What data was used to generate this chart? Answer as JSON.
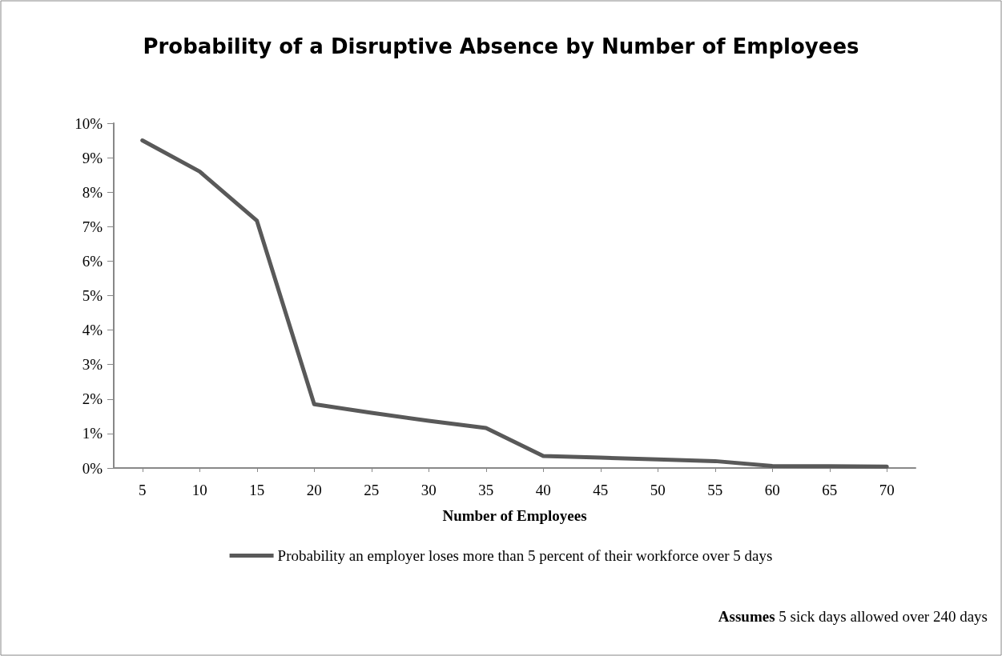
{
  "chart_data": {
    "type": "line",
    "title": "Probability of a Disruptive Absence by Number of Employees",
    "xlabel": "Number of Employees",
    "categories": [
      "5",
      "10",
      "15",
      "20",
      "25",
      "30",
      "35",
      "40",
      "45",
      "50",
      "55",
      "60",
      "65",
      "70"
    ],
    "series": [
      {
        "name": "Probability an employer loses more than 5 percent of their workforce over 5 days",
        "color": "#595959",
        "values": [
          9.5,
          8.6,
          7.17,
          1.85,
          1.6,
          1.37,
          1.16,
          0.35,
          0.3,
          0.25,
          0.2,
          0.06,
          0.05,
          0.04
        ]
      }
    ],
    "ylim": [
      0,
      10
    ],
    "yticks": [
      {
        "value": 0,
        "label": "0%"
      },
      {
        "value": 1,
        "label": "1%"
      },
      {
        "value": 2,
        "label": "2%"
      },
      {
        "value": 3,
        "label": "3%"
      },
      {
        "value": 4,
        "label": "4%"
      },
      {
        "value": 5,
        "label": "5%"
      },
      {
        "value": 6,
        "label": "6%"
      },
      {
        "value": 7,
        "label": "7%"
      },
      {
        "value": 8,
        "label": "8%"
      },
      {
        "value": 9,
        "label": "9%"
      },
      {
        "value": 10,
        "label": "10%"
      }
    ],
    "grid": false,
    "legend": "bottom",
    "marker": "none",
    "line_style": "solid",
    "annotations": [
      "Assumes 5 sick days allowed over 240 days"
    ]
  }
}
